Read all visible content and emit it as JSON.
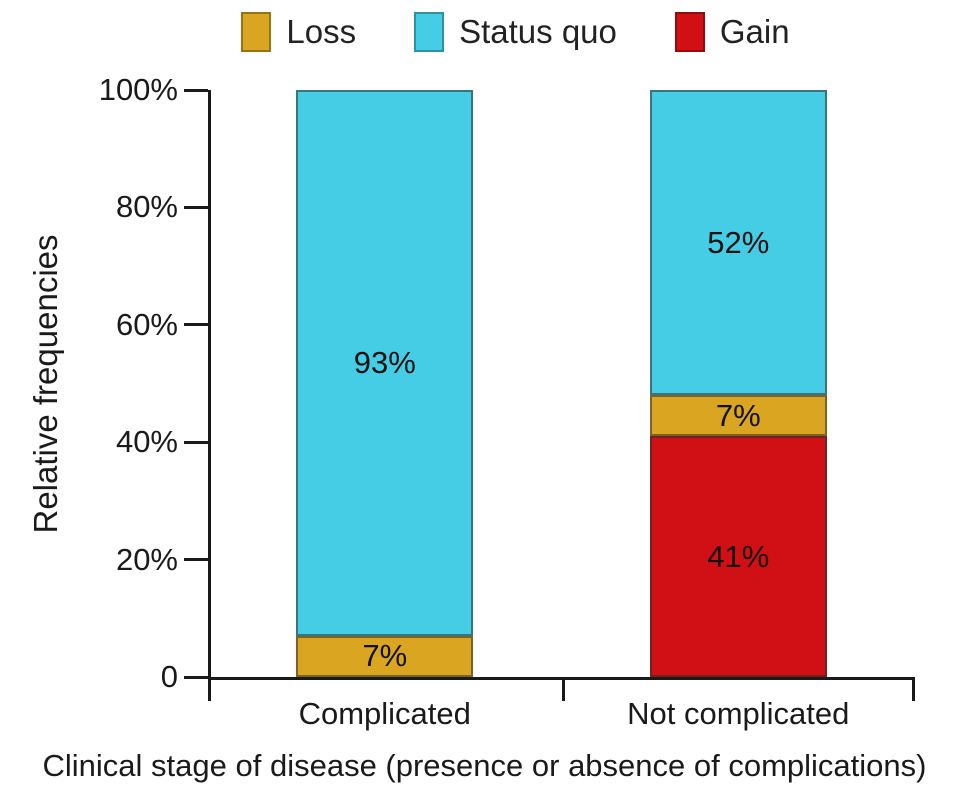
{
  "chart_data": {
    "type": "bar",
    "stacked": true,
    "title": "",
    "categories": [
      "Complicated",
      "Not complicated"
    ],
    "series": [
      {
        "name": "Gain",
        "color": "#d11016",
        "values": [
          0,
          41
        ],
        "labels": [
          "",
          "41%"
        ]
      },
      {
        "name": "Loss",
        "color": "#daa520",
        "values": [
          7,
          7
        ],
        "labels": [
          "7%",
          "7%"
        ]
      },
      {
        "name": "Status quo",
        "color": "#45cde5",
        "values": [
          93,
          52
        ],
        "labels": [
          "93%",
          "52%"
        ]
      }
    ],
    "legend": [
      {
        "name": "Loss",
        "color": "#daa520"
      },
      {
        "name": "Status quo",
        "color": "#45cde5"
      },
      {
        "name": "Gain",
        "color": "#d11016"
      }
    ],
    "legend_position": "top",
    "grid": false,
    "xlabel": "Clinical stage of disease (presence or absence of complications)",
    "ylabel": "Relative frequencies",
    "ylim": [
      0,
      100
    ],
    "yticks": [
      {
        "label": "100%",
        "value": 100
      },
      {
        "label": "80%",
        "value": 80
      },
      {
        "label": "60%",
        "value": 60
      },
      {
        "label": "40%",
        "value": 40
      },
      {
        "label": "20%",
        "value": 20
      },
      {
        "label": "0",
        "value": 0
      }
    ],
    "axis_color": "#1a1a1a",
    "text_color": "#1a1a1a"
  }
}
